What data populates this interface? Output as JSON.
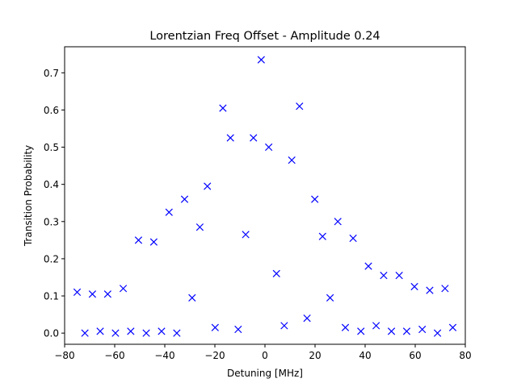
{
  "chart_data": {
    "type": "scatter",
    "title": "Lorentzian Freq Offset - Amplitude 0.24",
    "xlabel": "Detuning [MHz]",
    "ylabel": "Transition Probability",
    "xlim": [
      -80,
      80
    ],
    "ylim": [
      -0.03,
      0.77
    ],
    "xticks": [
      -80,
      -60,
      -40,
      -20,
      0,
      20,
      40,
      60,
      80
    ],
    "xtick_labels": [
      "−80",
      "−60",
      "−40",
      "−20",
      "0",
      "20",
      "40",
      "60",
      "80"
    ],
    "yticks": [
      0.0,
      0.1,
      0.2,
      0.3,
      0.4,
      0.5,
      0.6,
      0.7
    ],
    "ytick_labels": [
      "0.0",
      "0.1",
      "0.2",
      "0.3",
      "0.4",
      "0.5",
      "0.6",
      "0.7"
    ],
    "grid": false,
    "marker": "x",
    "color": "#0000ff",
    "series": [
      {
        "points": [
          [
            -75.0,
            0.11
          ],
          [
            -71.9,
            0.0
          ],
          [
            -68.9,
            0.105
          ],
          [
            -65.8,
            0.005
          ],
          [
            -62.8,
            0.105
          ],
          [
            -59.7,
            0.0
          ],
          [
            -56.6,
            0.12
          ],
          [
            -53.6,
            0.005
          ],
          [
            -50.5,
            0.25
          ],
          [
            -47.4,
            0.0
          ],
          [
            -44.4,
            0.245
          ],
          [
            -41.3,
            0.005
          ],
          [
            -38.3,
            0.325
          ],
          [
            -35.2,
            0.0
          ],
          [
            -32.1,
            0.36
          ],
          [
            -29.1,
            0.095
          ],
          [
            -26.0,
            0.285
          ],
          [
            -23.0,
            0.395
          ],
          [
            -19.9,
            0.015
          ],
          [
            -16.8,
            0.605
          ],
          [
            -13.8,
            0.525
          ],
          [
            -10.7,
            0.01
          ],
          [
            -7.7,
            0.265
          ],
          [
            -4.6,
            0.525
          ],
          [
            -1.5,
            0.735
          ],
          [
            1.5,
            0.5
          ],
          [
            4.6,
            0.16
          ],
          [
            7.7,
            0.02
          ],
          [
            10.7,
            0.465
          ],
          [
            13.8,
            0.61
          ],
          [
            16.8,
            0.04
          ],
          [
            19.9,
            0.36
          ],
          [
            23.0,
            0.26
          ],
          [
            26.0,
            0.095
          ],
          [
            29.1,
            0.3
          ],
          [
            32.1,
            0.015
          ],
          [
            35.2,
            0.255
          ],
          [
            38.3,
            0.005
          ],
          [
            41.3,
            0.18
          ],
          [
            44.4,
            0.02
          ],
          [
            47.4,
            0.155
          ],
          [
            50.5,
            0.005
          ],
          [
            53.6,
            0.155
          ],
          [
            56.6,
            0.005
          ],
          [
            59.7,
            0.125
          ],
          [
            62.8,
            0.01
          ],
          [
            65.8,
            0.115
          ],
          [
            68.9,
            0.0
          ],
          [
            71.9,
            0.12
          ],
          [
            75.0,
            0.015
          ]
        ]
      }
    ]
  }
}
